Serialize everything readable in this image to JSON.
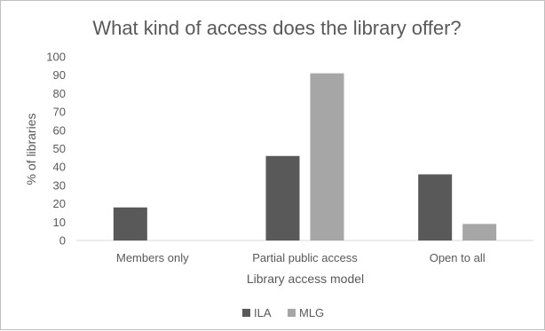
{
  "chart_data": {
    "type": "bar",
    "title": "What kind of access does the library offer?",
    "xlabel": "Library access model",
    "ylabel": "% of libraries",
    "categories": [
      "Members only",
      "Partial public access",
      "Open to all"
    ],
    "series": [
      {
        "name": "ILA",
        "color": "#595959",
        "values": [
          18,
          46,
          36
        ]
      },
      {
        "name": "MLG",
        "color": "#a6a6a6",
        "values": [
          0,
          91,
          9
        ]
      }
    ],
    "ylim": [
      0,
      100
    ],
    "yticks": [
      0,
      10,
      20,
      30,
      40,
      50,
      60,
      70,
      80,
      90,
      100
    ],
    "grid": false,
    "legend": "bottom"
  }
}
